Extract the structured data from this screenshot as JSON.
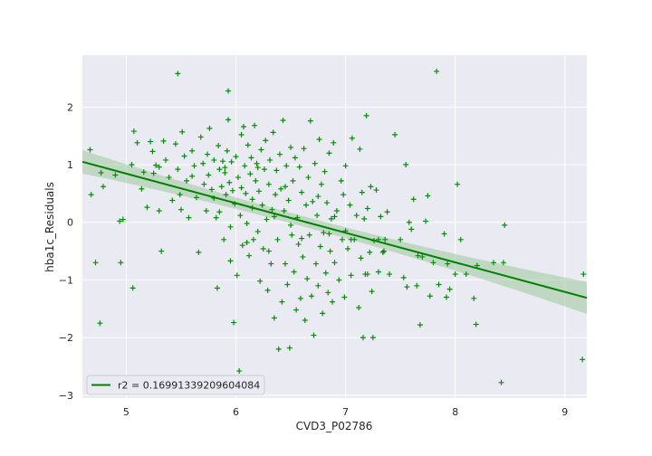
{
  "chart_data": {
    "type": "scatter",
    "xlabel": "CVD3_P02786",
    "ylabel": "hba1c_Residuals",
    "xlim": [
      4.6,
      9.2
    ],
    "ylim": [
      -3.05,
      2.9
    ],
    "xticks": [
      5,
      6,
      7,
      8,
      9
    ],
    "yticks": [
      -3,
      -2,
      -1,
      0,
      1,
      2
    ],
    "grid": true,
    "legend_position": "lower-left",
    "marker": "plus",
    "colors": {
      "points": "#0a8a0a",
      "fit": "#008000",
      "band": "#9cc99c",
      "plot_bg": "#eaeaf2",
      "grid": "#ffffff"
    },
    "fit": {
      "x0": 4.6,
      "y0": 1.05,
      "x1": 9.2,
      "y1": -1.31
    },
    "legend_label": "r2 = 0.16991339209604084",
    "points": [
      [
        5.47,
        2.58
      ],
      [
        7.83,
        2.62
      ],
      [
        5.93,
        2.28
      ],
      [
        4.67,
        1.26
      ],
      [
        4.68,
        0.48
      ],
      [
        4.77,
        0.86
      ],
      [
        4.79,
        0.62
      ],
      [
        4.72,
        -0.7
      ],
      [
        4.76,
        -1.75
      ],
      [
        4.9,
        0.82
      ],
      [
        4.94,
        0.02
      ],
      [
        4.97,
        0.05
      ],
      [
        4.95,
        -0.7
      ],
      [
        5.06,
        -1.14
      ],
      [
        5.07,
        1.58
      ],
      [
        5.1,
        1.38
      ],
      [
        5.14,
        0.58
      ],
      [
        5.16,
        0.87
      ],
      [
        5.19,
        0.26
      ],
      [
        5.22,
        1.4
      ],
      [
        5.24,
        1.23
      ],
      [
        5.27,
        0.99
      ],
      [
        5.3,
        0.2
      ],
      [
        5.32,
        -0.5
      ],
      [
        5.34,
        1.41
      ],
      [
        5.36,
        1.08
      ],
      [
        5.39,
        0.78
      ],
      [
        5.42,
        0.38
      ],
      [
        5.45,
        1.36
      ],
      [
        5.47,
        0.92
      ],
      [
        5.49,
        0.48
      ],
      [
        5.51,
        1.57
      ],
      [
        5.53,
        1.15
      ],
      [
        5.55,
        0.72
      ],
      [
        5.57,
        0.08
      ],
      [
        5.6,
        1.24
      ],
      [
        5.62,
        0.98
      ],
      [
        5.64,
        0.43
      ],
      [
        5.66,
        -0.52
      ],
      [
        5.68,
        1.48
      ],
      [
        5.7,
        1.02
      ],
      [
        5.71,
        0.66
      ],
      [
        5.73,
        0.2
      ],
      [
        5.74,
        1.18
      ],
      [
        5.75,
        0.82
      ],
      [
        5.76,
        1.63
      ],
      [
        5.78,
        0.57
      ],
      [
        5.8,
        1.08
      ],
      [
        5.82,
        0.08
      ],
      [
        5.83,
        -1.14
      ],
      [
        5.84,
        1.33
      ],
      [
        5.85,
        0.92
      ],
      [
        5.87,
        0.62
      ],
      [
        5.88,
        1.06
      ],
      [
        5.89,
        -0.3
      ],
      [
        5.9,
        0.86
      ],
      [
        5.91,
        0.48
      ],
      [
        5.92,
        1.24
      ],
      [
        5.93,
        1.78
      ],
      [
        5.94,
        0.69
      ],
      [
        5.95,
        -0.67
      ],
      [
        5.96,
        1.05
      ],
      [
        5.97,
        0.55
      ],
      [
        5.98,
        -1.74
      ],
      [
        5.99,
        0.32
      ],
      [
        6.0,
        1.14
      ],
      [
        6.01,
        -0.92
      ],
      [
        6.02,
        0.78
      ],
      [
        6.03,
        -2.58
      ],
      [
        6.04,
        0.12
      ],
      [
        6.05,
        1.52
      ],
      [
        6.06,
        -0.4
      ],
      [
        6.07,
        1.66
      ],
      [
        6.08,
        0.98
      ],
      [
        6.09,
        0.5
      ],
      [
        6.1,
        -0.02
      ],
      [
        6.11,
        1.34
      ],
      [
        6.12,
        -0.58
      ],
      [
        6.13,
        0.84
      ],
      [
        6.14,
        1.12
      ],
      [
        6.15,
        0.4
      ],
      [
        6.16,
        -0.3
      ],
      [
        6.17,
        1.68
      ],
      [
        6.18,
        0.72
      ],
      [
        6.19,
        1.02
      ],
      [
        6.2,
        -0.16
      ],
      [
        6.21,
        0.54
      ],
      [
        6.22,
        -1.02
      ],
      [
        6.23,
        1.26
      ],
      [
        6.24,
        0.3
      ],
      [
        6.25,
        -0.46
      ],
      [
        6.26,
        0.92
      ],
      [
        6.27,
        1.42
      ],
      [
        6.28,
        0.05
      ],
      [
        6.29,
        -1.18
      ],
      [
        6.3,
        0.66
      ],
      [
        6.31,
        1.08
      ],
      [
        6.32,
        -0.72
      ],
      [
        6.33,
        0.22
      ],
      [
        6.34,
        1.56
      ],
      [
        6.35,
        -1.66
      ],
      [
        6.36,
        0.48
      ],
      [
        6.37,
        0.9
      ],
      [
        6.38,
        -0.3
      ],
      [
        6.39,
        -2.2
      ],
      [
        6.4,
        1.18
      ],
      [
        6.41,
        0.58
      ],
      [
        6.42,
        -1.38
      ],
      [
        6.43,
        1.77
      ],
      [
        6.44,
        0.2
      ],
      [
        6.45,
        -0.72
      ],
      [
        6.46,
        0.98
      ],
      [
        6.47,
        -1.08
      ],
      [
        6.48,
        0.38
      ],
      [
        6.49,
        -2.18
      ],
      [
        6.5,
        1.3
      ],
      [
        6.51,
        -0.22
      ],
      [
        6.52,
        0.72
      ],
      [
        6.53,
        -0.86
      ],
      [
        6.54,
        1.12
      ],
      [
        6.55,
        -1.52
      ],
      [
        6.56,
        0.08
      ],
      [
        6.57,
        -0.38
      ],
      [
        6.58,
        0.96
      ],
      [
        6.59,
        -1.32
      ],
      [
        6.6,
        0.52
      ],
      [
        6.61,
        -0.6
      ],
      [
        6.62,
        1.28
      ],
      [
        6.63,
        -1.7
      ],
      [
        6.64,
        0.3
      ],
      [
        6.65,
        -0.98
      ],
      [
        6.66,
        0.78
      ],
      [
        6.67,
        -0.22
      ],
      [
        6.68,
        1.76
      ],
      [
        6.69,
        -1.28
      ],
      [
        6.7,
        0.36
      ],
      [
        6.71,
        -1.96
      ],
      [
        6.72,
        1.02
      ],
      [
        6.73,
        -0.72
      ],
      [
        6.74,
        0.12
      ],
      [
        6.75,
        -1.1
      ],
      [
        6.76,
        1.44
      ],
      [
        6.77,
        -0.42
      ],
      [
        6.78,
        0.66
      ],
      [
        6.79,
        -1.58
      ],
      [
        6.8,
        -0.18
      ],
      [
        6.81,
        0.88
      ],
      [
        6.82,
        -0.88
      ],
      [
        6.83,
        0.34
      ],
      [
        6.84,
        -1.22
      ],
      [
        6.85,
        1.2
      ],
      [
        6.86,
        -0.5
      ],
      [
        6.87,
        0.06
      ],
      [
        6.88,
        -1.38
      ],
      [
        6.89,
        1.38
      ],
      [
        6.9,
        -0.7
      ],
      [
        6.92,
        0.2
      ],
      [
        6.94,
        -1.0
      ],
      [
        6.96,
        0.72
      ],
      [
        6.97,
        -0.3
      ],
      [
        6.98,
        0.48
      ],
      [
        6.99,
        -1.3
      ],
      [
        7.0,
        0.98
      ],
      [
        7.02,
        -0.46
      ],
      [
        7.04,
        0.3
      ],
      [
        7.05,
        -0.92
      ],
      [
        7.06,
        1.46
      ],
      [
        7.08,
        -0.3
      ],
      [
        7.1,
        0.12
      ],
      [
        7.12,
        -1.48
      ],
      [
        7.13,
        1.27
      ],
      [
        7.14,
        -0.62
      ],
      [
        7.15,
        0.52
      ],
      [
        7.16,
        -2.0
      ],
      [
        7.17,
        0.06
      ],
      [
        7.18,
        -0.9
      ],
      [
        7.19,
        1.85
      ],
      [
        7.2,
        0.24
      ],
      [
        7.22,
        -0.52
      ],
      [
        7.23,
        0.62
      ],
      [
        7.24,
        -1.2
      ],
      [
        7.25,
        -2.0
      ],
      [
        7.26,
        -0.32
      ],
      [
        7.28,
        0.56
      ],
      [
        7.3,
        -0.86
      ],
      [
        7.32,
        0.1
      ],
      [
        7.34,
        -0.52
      ],
      [
        7.36,
        -0.3
      ],
      [
        7.38,
        0.18
      ],
      [
        7.4,
        -0.9
      ],
      [
        7.45,
        1.52
      ],
      [
        7.5,
        -0.3
      ],
      [
        7.53,
        -0.96
      ],
      [
        7.55,
        1.0
      ],
      [
        7.56,
        -1.12
      ],
      [
        7.58,
        0.0
      ],
      [
        7.6,
        -0.12
      ],
      [
        7.62,
        0.4
      ],
      [
        7.65,
        -1.1
      ],
      [
        7.68,
        -1.78
      ],
      [
        7.7,
        -0.6
      ],
      [
        7.73,
        0.02
      ],
      [
        7.75,
        0.46
      ],
      [
        7.77,
        -1.28
      ],
      [
        7.8,
        -0.7
      ],
      [
        7.85,
        -1.08
      ],
      [
        7.9,
        -0.2
      ],
      [
        7.93,
        -0.72
      ],
      [
        7.95,
        -1.16
      ],
      [
        8.0,
        -0.9
      ],
      [
        8.02,
        0.66
      ],
      [
        8.05,
        -0.3
      ],
      [
        8.1,
        -0.9
      ],
      [
        8.17,
        -1.32
      ],
      [
        8.19,
        -1.77
      ],
      [
        8.35,
        -0.7
      ],
      [
        8.42,
        -2.78
      ],
      [
        8.45,
        -0.05
      ],
      [
        9.17,
        -0.9
      ],
      [
        9.16,
        -2.38
      ],
      [
        8.44,
        -0.7
      ],
      [
        8.2,
        -0.75
      ],
      [
        7.92,
        -1.3
      ],
      [
        7.66,
        -0.58
      ],
      [
        7.3,
        -0.3
      ],
      [
        7.2,
        -0.9
      ],
      [
        7.05,
        -0.3
      ],
      [
        6.85,
        -0.2
      ],
      [
        6.6,
        -0.28
      ],
      [
        6.3,
        -0.5
      ],
      [
        6.1,
        -0.35
      ],
      [
        5.95,
        -0.08
      ],
      [
        5.8,
        0.42
      ],
      [
        5.6,
        0.8
      ],
      [
        5.3,
        0.96
      ],
      [
        5.05,
        1.0
      ],
      [
        5.25,
        0.85
      ],
      [
        5.5,
        0.22
      ],
      [
        5.85,
        0.18
      ],
      [
        6.15,
        0.25
      ],
      [
        6.45,
        0.62
      ],
      [
        6.75,
        0.45
      ],
      [
        7.0,
        -0.15
      ],
      [
        7.35,
        -0.5
      ],
      [
        6.9,
        0.1
      ],
      [
        6.5,
        -0.05
      ],
      [
        6.2,
        0.95
      ],
      [
        5.9,
        0.95
      ],
      [
        6.05,
        0.6
      ],
      [
        6.35,
        0.1
      ]
    ]
  }
}
